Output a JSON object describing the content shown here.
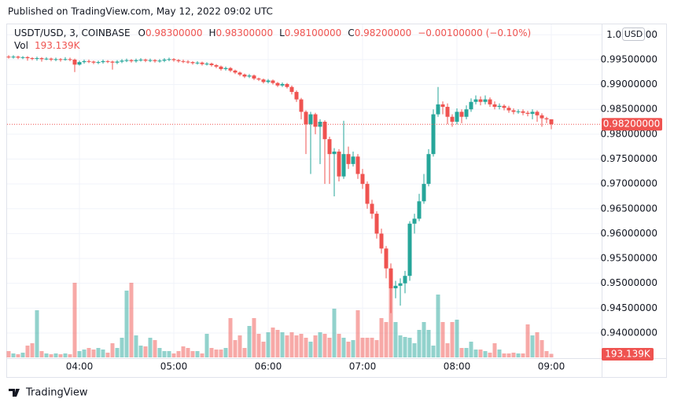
{
  "published": "Published on TradingView.com, May 12, 2022 09:02 UTC",
  "brand": "TradingView",
  "chart_data": {
    "type": "candlestick",
    "currency": "USD",
    "legend": {
      "symbol": "USDT/USD, 3, COINBASE",
      "fields": [
        {
          "key": "O",
          "value": "0.98300000"
        },
        {
          "key": "H",
          "value": "0.98300000"
        },
        {
          "key": "L",
          "value": "0.98100000"
        },
        {
          "key": "C",
          "value": "0.98200000"
        }
      ],
      "change": "−0.00100000 (−0.10%)",
      "volume_key": "Vol",
      "volume_value": "193.139K"
    },
    "up_color": "#26a69a",
    "down_color": "#ef5350",
    "grid": true,
    "x": [
      "03:15",
      "03:18",
      "03:21",
      "03:24",
      "03:27",
      "03:30",
      "03:33",
      "03:36",
      "03:39",
      "03:42",
      "03:45",
      "03:48",
      "03:51",
      "03:54",
      "03:57",
      "04:00",
      "04:03",
      "04:06",
      "04:09",
      "04:12",
      "04:15",
      "04:18",
      "04:21",
      "04:24",
      "04:27",
      "04:30",
      "04:33",
      "04:36",
      "04:39",
      "04:42",
      "04:45",
      "04:48",
      "04:51",
      "04:54",
      "04:57",
      "05:00",
      "05:03",
      "05:06",
      "05:09",
      "05:12",
      "05:15",
      "05:18",
      "05:21",
      "05:24",
      "05:27",
      "05:30",
      "05:33",
      "05:36",
      "05:39",
      "05:42",
      "05:45",
      "05:48",
      "05:51",
      "05:54",
      "05:57",
      "06:00",
      "06:03",
      "06:06",
      "06:09",
      "06:12",
      "06:15",
      "06:18",
      "06:21",
      "06:24",
      "06:27",
      "06:30",
      "06:33",
      "06:36",
      "06:39",
      "06:42",
      "06:45",
      "06:48",
      "06:51",
      "06:54",
      "06:57",
      "07:00",
      "07:03",
      "07:06",
      "07:09",
      "07:12",
      "07:15",
      "07:18",
      "07:21",
      "07:24",
      "07:27",
      "07:30",
      "07:33",
      "07:36",
      "07:39",
      "07:42",
      "07:45",
      "07:48",
      "07:51",
      "07:54",
      "07:57",
      "08:00",
      "08:03",
      "08:06",
      "08:09",
      "08:12",
      "08:15",
      "08:18",
      "08:21",
      "08:24",
      "08:27",
      "08:30",
      "08:33",
      "08:36",
      "08:39",
      "08:42",
      "08:45",
      "08:48",
      "08:51",
      "08:54",
      "08:57",
      "09:00"
    ],
    "open": [
      0.9956,
      0.9955,
      0.9956,
      0.9954,
      0.9955,
      0.9953,
      0.9952,
      0.9953,
      0.9951,
      0.9952,
      0.995,
      0.9951,
      0.995,
      0.9951,
      0.995,
      0.994,
      0.9945,
      0.9947,
      0.9946,
      0.9944,
      0.9945,
      0.9947,
      0.9946,
      0.9944,
      0.9946,
      0.9948,
      0.9949,
      0.9947,
      0.9949,
      0.995,
      0.9948,
      0.9949,
      0.9947,
      0.9948,
      0.995,
      0.9951,
      0.9949,
      0.9947,
      0.9946,
      0.9945,
      0.9943,
      0.9944,
      0.9941,
      0.9942,
      0.9939,
      0.9936,
      0.9931,
      0.9933,
      0.9928,
      0.9924,
      0.992,
      0.9916,
      0.9918,
      0.9912,
      0.991,
      0.9905,
      0.9908,
      0.9903,
      0.9898,
      0.9901,
      0.9895,
      0.9885,
      0.987,
      0.9845,
      0.982,
      0.984,
      0.9815,
      0.9825,
      0.979,
      0.976,
      0.9765,
      0.9715,
      0.976,
      0.974,
      0.9755,
      0.972,
      0.97,
      0.966,
      0.964,
      0.96,
      0.957,
      0.953,
      0.949,
      0.9495,
      0.95,
      0.9515,
      0.962,
      0.963,
      0.9665,
      0.97,
      0.976,
      0.984,
      0.986,
      0.9855,
      0.9835,
      0.9825,
      0.9845,
      0.9835,
      0.985,
      0.9865,
      0.987,
      0.9865,
      0.987,
      0.986,
      0.9855,
      0.9857,
      0.9853,
      0.9848,
      0.9845,
      0.9846,
      0.9843,
      0.9841,
      0.9845,
      0.9838,
      0.9832,
      0.983
    ],
    "high": [
      0.9959,
      0.9959,
      0.9958,
      0.9957,
      0.9957,
      0.9955,
      0.9956,
      0.9955,
      0.9955,
      0.9954,
      0.9954,
      0.9953,
      0.9955,
      0.9954,
      0.9952,
      0.9948,
      0.995,
      0.995,
      0.9948,
      0.9948,
      0.995,
      0.9949,
      0.9948,
      0.9949,
      0.9951,
      0.9952,
      0.9951,
      0.9952,
      0.9953,
      0.9952,
      0.9952,
      0.9951,
      0.9951,
      0.9953,
      0.9954,
      0.9953,
      0.9951,
      0.995,
      0.9949,
      0.9947,
      0.9947,
      0.9946,
      0.9945,
      0.9944,
      0.9941,
      0.9938,
      0.9936,
      0.9935,
      0.993,
      0.9926,
      0.9922,
      0.9921,
      0.992,
      0.9914,
      0.9912,
      0.9911,
      0.991,
      0.9905,
      0.9904,
      0.9903,
      0.9898,
      0.9888,
      0.9873,
      0.9848,
      0.9845,
      0.9843,
      0.983,
      0.9828,
      0.9795,
      0.9772,
      0.977,
      0.9827,
      0.9775,
      0.9765,
      0.976,
      0.973,
      0.9705,
      0.9668,
      0.9645,
      0.961,
      0.9575,
      0.954,
      0.9505,
      0.951,
      0.9525,
      0.9625,
      0.964,
      0.968,
      0.972,
      0.977,
      0.985,
      0.9895,
      0.9866,
      0.9862,
      0.984,
      0.9852,
      0.985,
      0.9858,
      0.9872,
      0.9878,
      0.9876,
      0.9878,
      0.9874,
      0.9866,
      0.9862,
      0.986,
      0.9857,
      0.9852,
      0.985,
      0.985,
      0.9847,
      0.985,
      0.9848,
      0.9842,
      0.9835,
      0.983
    ],
    "low": [
      0.9952,
      0.9952,
      0.9951,
      0.9951,
      0.9948,
      0.9949,
      0.9948,
      0.9946,
      0.9949,
      0.9947,
      0.9947,
      0.9946,
      0.9948,
      0.9947,
      0.9925,
      0.9938,
      0.9942,
      0.9943,
      0.9941,
      0.9941,
      0.9942,
      0.9943,
      0.993,
      0.9941,
      0.9943,
      0.9945,
      0.9944,
      0.9944,
      0.9946,
      0.9945,
      0.9945,
      0.9944,
      0.9944,
      0.9945,
      0.9947,
      0.9946,
      0.9944,
      0.9943,
      0.9942,
      0.994,
      0.994,
      0.9938,
      0.9938,
      0.9936,
      0.9933,
      0.9928,
      0.9928,
      0.9925,
      0.9921,
      0.9917,
      0.9913,
      0.9913,
      0.9909,
      0.9907,
      0.9902,
      0.9902,
      0.99,
      0.9895,
      0.9895,
      0.9892,
      0.988,
      0.9865,
      0.983,
      0.976,
      0.972,
      0.98,
      0.974,
      0.97,
      0.97,
      0.9675,
      0.9705,
      0.971,
      0.973,
      0.9735,
      0.971,
      0.969,
      0.965,
      0.963,
      0.959,
      0.956,
      0.951,
      0.944,
      0.947,
      0.9455,
      0.948,
      0.9505,
      0.96,
      0.9625,
      0.966,
      0.9695,
      0.9755,
      0.9835,
      0.984,
      0.982,
      0.9815,
      0.982,
      0.9822,
      0.983,
      0.9845,
      0.986,
      0.9858,
      0.986,
      0.9855,
      0.985,
      0.985,
      0.9848,
      0.9843,
      0.984,
      0.9841,
      0.9838,
      0.9836,
      0.983,
      0.9825,
      0.9815,
      0.9822,
      0.981
    ],
    "close": [
      0.9955,
      0.9956,
      0.9954,
      0.9955,
      0.9953,
      0.9952,
      0.9953,
      0.9951,
      0.9952,
      0.995,
      0.9951,
      0.995,
      0.9951,
      0.995,
      0.994,
      0.9945,
      0.9947,
      0.9946,
      0.9944,
      0.9945,
      0.9947,
      0.9946,
      0.9944,
      0.9946,
      0.9948,
      0.9949,
      0.9947,
      0.9949,
      0.995,
      0.9948,
      0.9949,
      0.9947,
      0.9948,
      0.995,
      0.9951,
      0.9949,
      0.9947,
      0.9946,
      0.9945,
      0.9943,
      0.9944,
      0.9941,
      0.9942,
      0.9939,
      0.9936,
      0.9931,
      0.9933,
      0.9928,
      0.9924,
      0.992,
      0.9916,
      0.9918,
      0.9912,
      0.991,
      0.9905,
      0.9908,
      0.9903,
      0.9898,
      0.9901,
      0.9895,
      0.9885,
      0.987,
      0.9845,
      0.982,
      0.984,
      0.9815,
      0.9825,
      0.979,
      0.976,
      0.9765,
      0.9715,
      0.976,
      0.974,
      0.9755,
      0.972,
      0.97,
      0.966,
      0.964,
      0.96,
      0.957,
      0.953,
      0.949,
      0.9495,
      0.95,
      0.9515,
      0.962,
      0.963,
      0.9665,
      0.97,
      0.976,
      0.984,
      0.986,
      0.9855,
      0.9835,
      0.9825,
      0.9845,
      0.9835,
      0.985,
      0.9865,
      0.987,
      0.9865,
      0.987,
      0.986,
      0.9855,
      0.9857,
      0.9853,
      0.9848,
      0.9845,
      0.9846,
      0.9843,
      0.9841,
      0.9845,
      0.9838,
      0.9832,
      0.983,
      0.982
    ],
    "volume": [
      344,
      215,
      172,
      258,
      645,
      774,
      2580,
      344,
      215,
      172,
      215,
      172,
      215,
      172,
      4085,
      344,
      430,
      516,
      430,
      516,
      430,
      258,
      774,
      516,
      1075,
      3655,
      4085,
      1204,
      645,
      602,
      1075,
      946,
      516,
      344,
      344,
      215,
      344,
      602,
      516,
      344,
      344,
      215,
      1290,
      516,
      430,
      430,
      516,
      2150,
      946,
      1204,
      516,
      1720,
      2150,
      1290,
      860,
      1376,
      1634,
      1505,
      1376,
      1204,
      1376,
      1204,
      1290,
      1075,
      860,
      1204,
      1376,
      1290,
      1075,
      2666,
      1290,
      1075,
      860,
      946,
      2580,
      1075,
      1075,
      1075,
      946,
      2150,
      1935,
      4085,
      1935,
      1204,
      1118,
      1075,
      774,
      1505,
      1935,
      1505,
      645,
      3440,
      1935,
      774,
      1935,
      2064,
      516,
      516,
      860,
      430,
      430,
      344,
      258,
      774,
      430,
      215,
      215,
      258,
      215,
      215,
      1806,
      1204,
      1376,
      946,
      344,
      193.139
    ],
    "vlim": [
      0,
      4300
    ],
    "ylim": [
      0.9351,
      1.0021
    ],
    "yticks": [
      {
        "value": 0.94,
        "label": "0.94000000"
      },
      {
        "value": 0.945,
        "label": "0.94500000"
      },
      {
        "value": 0.95,
        "label": "0.95000000"
      },
      {
        "value": 0.955,
        "label": "0.95500000"
      },
      {
        "value": 0.96,
        "label": "0.96000000"
      },
      {
        "value": 0.965,
        "label": "0.96500000"
      },
      {
        "value": 0.97,
        "label": "0.97000000"
      },
      {
        "value": 0.975,
        "label": "0.97500000"
      },
      {
        "value": 0.98,
        "label": "0.98000000"
      },
      {
        "value": 0.985,
        "label": "0.98500000"
      },
      {
        "value": 0.99,
        "label": "0.99000000"
      },
      {
        "value": 0.995,
        "label": "0.99500000"
      },
      {
        "value": 1.0,
        "label": "1.0000000"
      }
    ],
    "xticks": [
      "04:00",
      "05:00",
      "06:00",
      "07:00",
      "08:00",
      "09:00"
    ]
  }
}
